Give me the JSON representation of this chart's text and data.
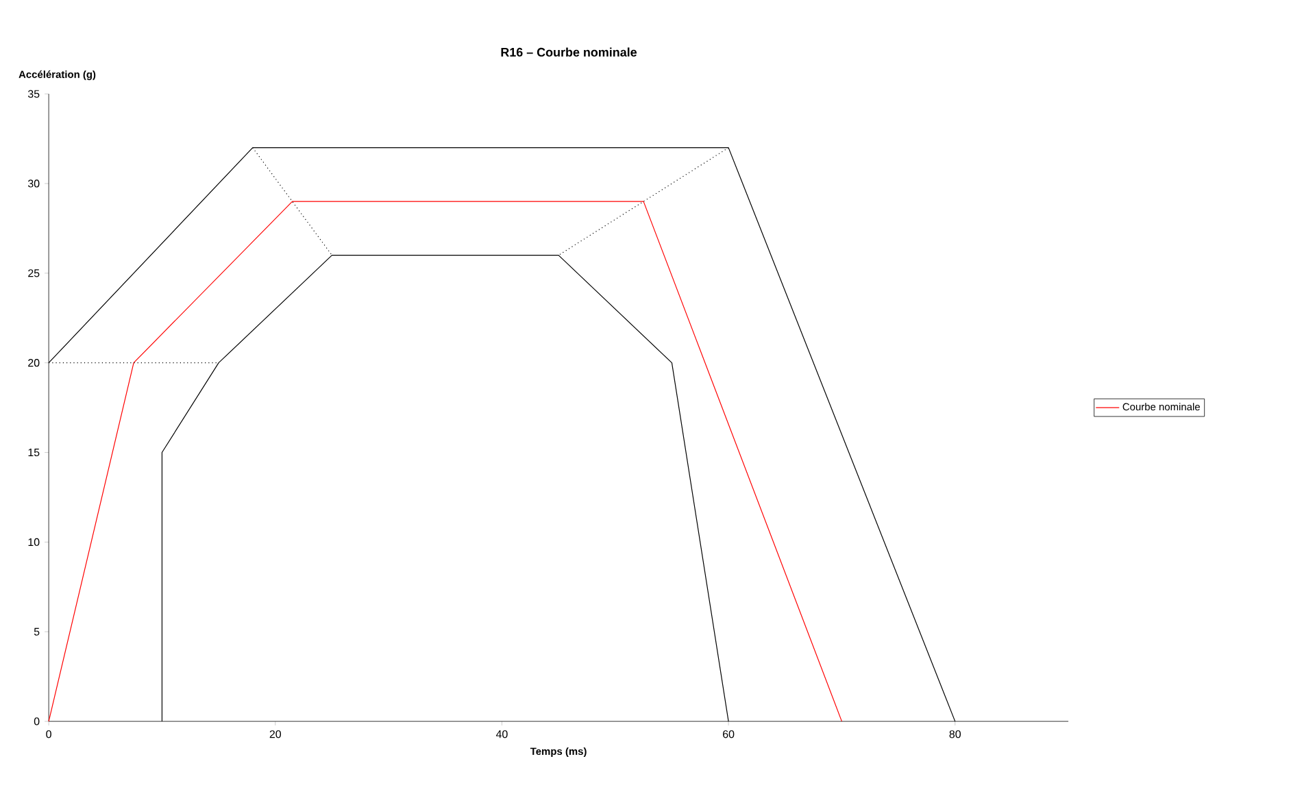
{
  "chart_data": {
    "type": "line",
    "title": "R16 – Courbe nominale",
    "xlabel": "Temps (ms)",
    "ylabel": "Accélération (g)",
    "xlim": [
      0,
      90
    ],
    "xticks": [
      0,
      20,
      40,
      60,
      80
    ],
    "ylim": [
      0,
      35
    ],
    "yticks": [
      0,
      5,
      10,
      15,
      20,
      25,
      30,
      35
    ],
    "grid": false,
    "legend": "right",
    "marker": "none",
    "line_style": "solid",
    "series": [
      {
        "color": "#000000",
        "x": [
          0,
          18,
          60,
          80
        ],
        "values": [
          20,
          32,
          32,
          0
        ]
      },
      {
        "color": "#000000",
        "x": [
          10,
          10,
          15,
          25,
          45,
          55,
          60
        ],
        "values": [
          0,
          15,
          20,
          26,
          26,
          20,
          0
        ]
      },
      {
        "name": "Courbe nominale",
        "color": "#ff0000",
        "x": [
          0,
          7.5,
          21.5,
          52.5,
          70
        ],
        "values": [
          0,
          20,
          29,
          29,
          0
        ]
      },
      {
        "color": "#000000",
        "line_style": "dotted",
        "x": [
          0,
          15
        ],
        "values": [
          20,
          20
        ]
      },
      {
        "color": "#000000",
        "line_style": "dotted",
        "x": [
          18,
          25
        ],
        "values": [
          32,
          26
        ]
      },
      {
        "color": "#000000",
        "line_style": "dotted",
        "x": [
          60,
          45
        ],
        "values": [
          32,
          26
        ]
      }
    ]
  }
}
